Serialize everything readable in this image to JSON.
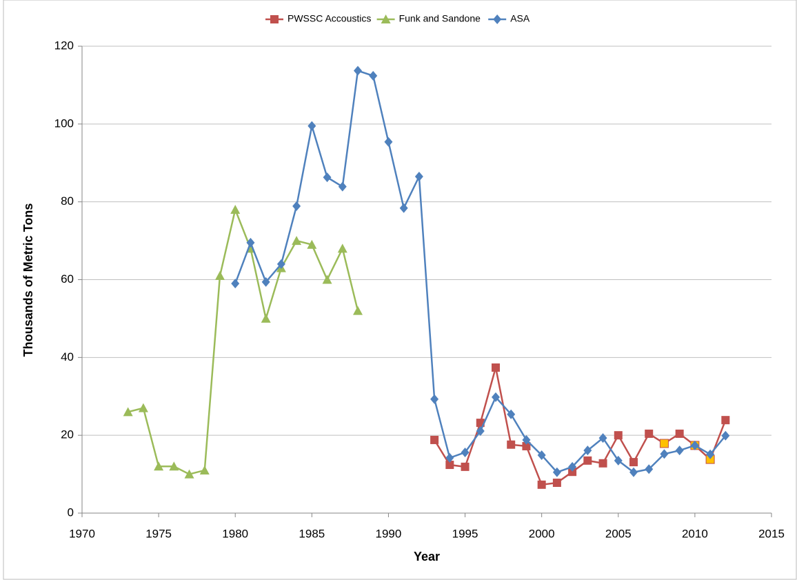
{
  "chart_data": {
    "type": "line",
    "xlabel": "Year",
    "ylabel": "Thousands of Metric  Tons",
    "xlim": [
      1970,
      2015
    ],
    "xticks": [
      1970,
      1975,
      1980,
      1985,
      1990,
      1995,
      2000,
      2005,
      2010,
      2015
    ],
    "ylim": [
      0,
      120
    ],
    "yticks": [
      0,
      20,
      40,
      60,
      80,
      100,
      120
    ],
    "grid": true,
    "legend": "top",
    "series": [
      {
        "name": "PWSSC Accoustics",
        "color": "#c0504d",
        "marker": "square",
        "x": [
          1993,
          1994,
          1995,
          1996,
          1997,
          1998,
          1999,
          2000,
          2001,
          2002,
          2003,
          2004,
          2005,
          2006,
          2007,
          2008,
          2009,
          2010,
          2011,
          2012
        ],
        "values": [
          18.8,
          12.4,
          11.9,
          23.2,
          37.4,
          17.6,
          17.2,
          7.3,
          7.8,
          10.6,
          13.5,
          12.8,
          20,
          13.1,
          20.4,
          17.9,
          20.4,
          17.4,
          13.8,
          23.9
        ],
        "marker_colors": [
          "#c0504d",
          "#c0504d",
          "#c0504d",
          "#c0504d",
          "#c0504d",
          "#c0504d",
          "#c0504d",
          "#c0504d",
          "#c0504d",
          "#c0504d",
          "#c0504d",
          "#c0504d",
          "#c0504d",
          "#c0504d",
          "#c0504d",
          "#ffc000",
          "#c0504d",
          "#ffc000",
          "#ffc000",
          "#c0504d"
        ]
      },
      {
        "name": "Funk and Sandone",
        "color": "#9bbb59",
        "marker": "triangle",
        "x": [
          1973,
          1974,
          1975,
          1976,
          1977,
          1978,
          1979,
          1980,
          1981,
          1982,
          1983,
          1984,
          1985,
          1986,
          1987,
          1988
        ],
        "values": [
          26,
          27,
          12,
          12,
          10,
          11,
          61,
          78,
          68,
          50,
          63,
          70,
          69,
          60,
          68,
          52
        ]
      },
      {
        "name": "ASA",
        "color": "#4f81bd",
        "marker": "diamond",
        "x": [
          1980,
          1981,
          1982,
          1983,
          1984,
          1985,
          1986,
          1987,
          1988,
          1989,
          1990,
          1991,
          1992,
          1993,
          1994,
          1995,
          1996,
          1997,
          1998,
          1999,
          2000,
          2001,
          2002,
          2003,
          2004,
          2005,
          2006,
          2007,
          2008,
          2009,
          2010,
          2011,
          2012
        ],
        "values": [
          59,
          69.5,
          59.4,
          64,
          78.9,
          99.5,
          86.3,
          83.9,
          113.7,
          112.4,
          95.4,
          78.4,
          86.5,
          29.3,
          14.2,
          15.6,
          21.1,
          29.8,
          25.4,
          18.8,
          14.9,
          10.5,
          11.9,
          16.1,
          19.3,
          13.5,
          10.5,
          11.3,
          15.2,
          16.1,
          17.4,
          15.1,
          19.9
        ]
      }
    ]
  }
}
